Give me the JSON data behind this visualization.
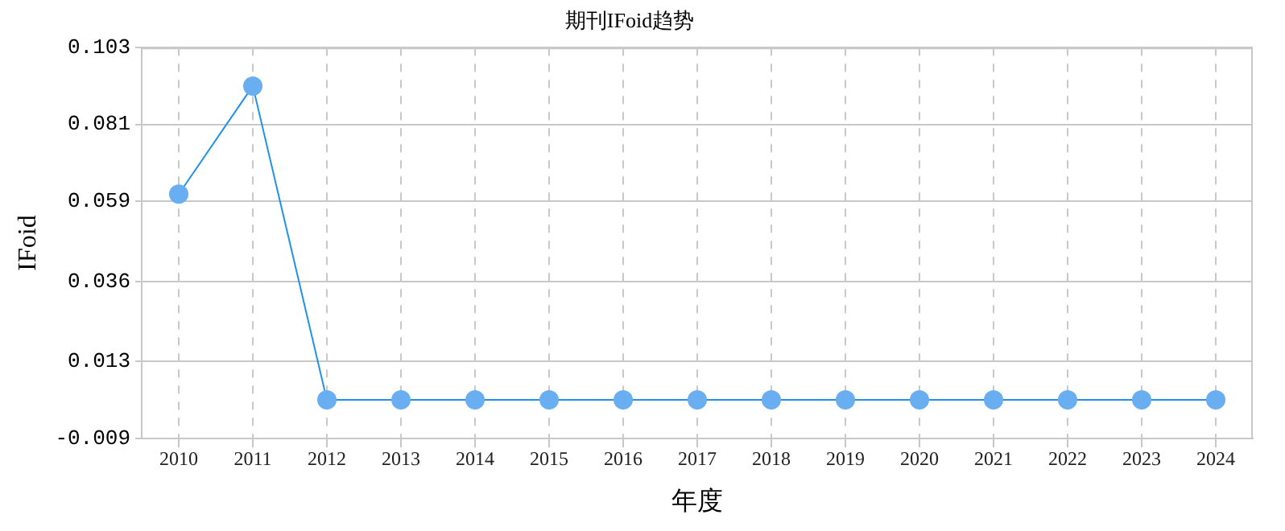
{
  "chart_data": {
    "type": "line",
    "title": "期刊IFoid趋势",
    "xlabel": "年度",
    "ylabel": "IFoid",
    "categories": [
      "2010",
      "2011",
      "2012",
      "2013",
      "2014",
      "2015",
      "2016",
      "2017",
      "2018",
      "2019",
      "2020",
      "2021",
      "2022",
      "2023",
      "2024"
    ],
    "series": [
      {
        "color": "#1e90ee",
        "values": [
          0.061,
          0.092,
          0.002,
          0.002,
          0.002,
          0.002,
          0.002,
          0.002,
          0.002,
          0.002,
          0.002,
          0.002,
          0.002,
          0.002,
          0.002
        ]
      }
    ],
    "ylim": [
      -0.009,
      0.103
    ],
    "yticks": [
      -0.009,
      0.013,
      0.036,
      0.059,
      0.081,
      0.103
    ],
    "grid": true,
    "marker": "circle",
    "line_style": "solid",
    "legend": false
  }
}
